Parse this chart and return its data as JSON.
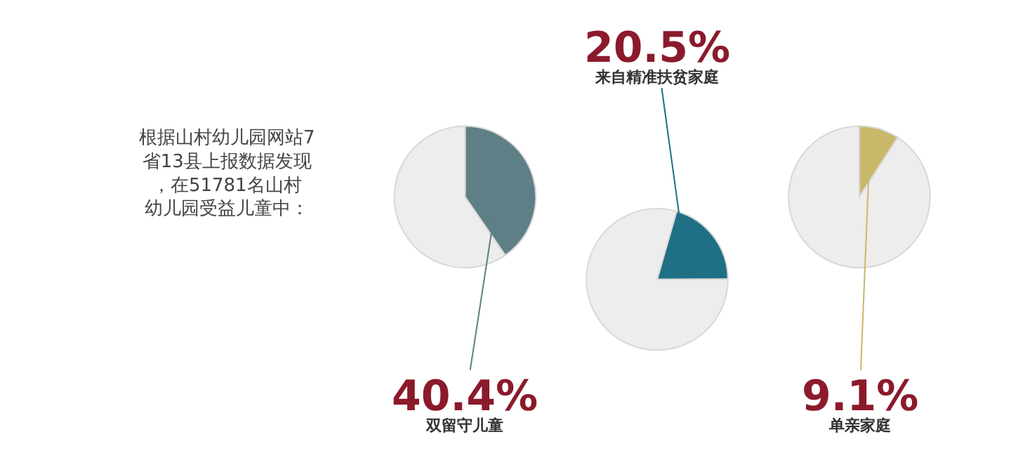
{
  "chart_data": [
    {
      "type": "other",
      "annotations": [
        "根据山村幼儿园网站7省13县上报数据发现，在51781名山村幼儿园受益儿童中："
      ]
    },
    {
      "type": "pie",
      "categories": [
        "双留守儿童",
        null
      ],
      "values": [
        40.4,
        59.6
      ],
      "colors": [
        "#5f7f86",
        "#ededed"
      ],
      "value_labels": [
        "40.4%",
        null
      ]
    },
    {
      "type": "pie",
      "categories": [
        "来自精准扶贫家庭",
        null
      ],
      "values": [
        20.5,
        79.5
      ],
      "colors": [
        "#1f6f85",
        "#ededed"
      ],
      "value_labels": [
        "20.5%",
        null
      ]
    },
    {
      "type": "pie",
      "categories": [
        "单亲家庭",
        null
      ],
      "values": [
        9.1,
        90.9
      ],
      "colors": [
        "#c9b86a",
        "#ededed"
      ],
      "value_labels": [
        "9.1%",
        null
      ]
    }
  ]
}
